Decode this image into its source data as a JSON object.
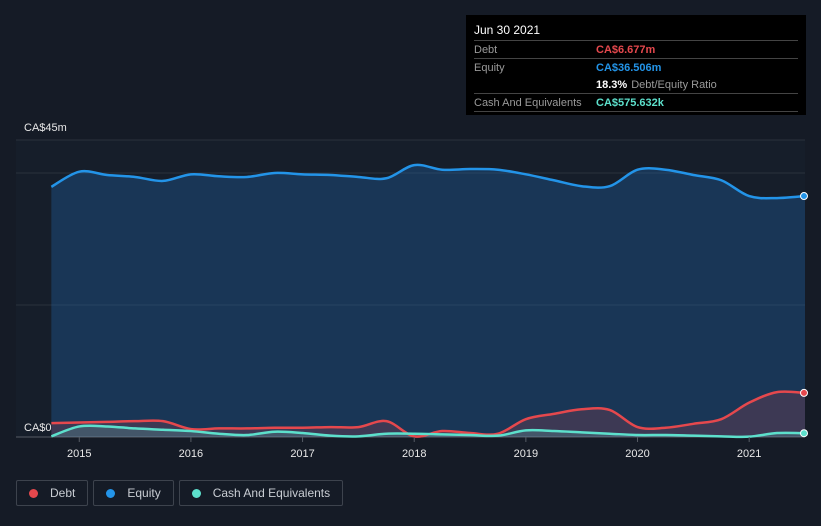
{
  "tooltip": {
    "date": "Jun 30 2021",
    "debt_label": "Debt",
    "debt_value": "CA$6.677m",
    "equity_label": "Equity",
    "equity_value": "CA$36.506m",
    "ratio_value": "18.3%",
    "ratio_label": "Debt/Equity Ratio",
    "cash_label": "Cash And Equivalents",
    "cash_value": "CA$575.632k"
  },
  "legend": [
    {
      "label": "Debt",
      "color": "#e5484d"
    },
    {
      "label": "Equity",
      "color": "#2394e8"
    },
    {
      "label": "Cash And Equivalents",
      "color": "#5de0cc"
    }
  ],
  "chart_data": {
    "type": "area",
    "title": "",
    "ylabel": "",
    "xlabel": "",
    "y_unit": "CA$ millions",
    "ylim": [
      0,
      45
    ],
    "y_tick_labels": [
      "CA$0",
      "CA$45m"
    ],
    "xlim": [
      2014.72,
      2021.5
    ],
    "x_ticks": [
      2015,
      2016,
      2017,
      2018,
      2019,
      2020,
      2021
    ],
    "x_tick_labels": [
      "2015",
      "2016",
      "2017",
      "2018",
      "2019",
      "2020",
      "2021"
    ],
    "x": [
      2014.75,
      2015,
      2015.25,
      2015.5,
      2015.75,
      2016,
      2016.25,
      2016.5,
      2016.75,
      2017,
      2017.25,
      2017.5,
      2017.75,
      2018,
      2018.25,
      2018.5,
      2018.75,
      2019,
      2019.25,
      2019.5,
      2019.75,
      2020,
      2020.25,
      2020.5,
      2020.75,
      2021,
      2021.25,
      2021.5
    ],
    "series": [
      {
        "name": "Equity",
        "color": "#2394e8",
        "values": [
          37.9,
          40.2,
          39.7,
          39.4,
          38.8,
          39.8,
          39.5,
          39.4,
          40.0,
          39.8,
          39.7,
          39.4,
          39.2,
          41.2,
          40.5,
          40.6,
          40.5,
          39.8,
          38.9,
          38.0,
          38.0,
          40.5,
          40.5,
          39.7,
          38.9,
          36.5,
          36.2,
          36.506
        ]
      },
      {
        "name": "Debt",
        "color": "#e5484d",
        "values": [
          2.1,
          2.2,
          2.3,
          2.4,
          2.4,
          1.2,
          1.3,
          1.3,
          1.4,
          1.4,
          1.5,
          1.5,
          2.4,
          0.1,
          0.9,
          0.6,
          0.5,
          2.7,
          3.5,
          4.2,
          4.1,
          1.5,
          1.4,
          2.0,
          2.7,
          5.2,
          6.8,
          6.677
        ]
      },
      {
        "name": "Cash And Equivalents",
        "color": "#5de0cc",
        "values": [
          0.1,
          1.6,
          1.6,
          1.3,
          1.1,
          0.9,
          0.5,
          0.3,
          0.8,
          0.6,
          0.2,
          0.1,
          0.5,
          0.5,
          0.4,
          0.3,
          0.2,
          1.0,
          0.9,
          0.7,
          0.5,
          0.3,
          0.3,
          0.2,
          0.1,
          0.05,
          0.6,
          0.576
        ]
      }
    ]
  }
}
